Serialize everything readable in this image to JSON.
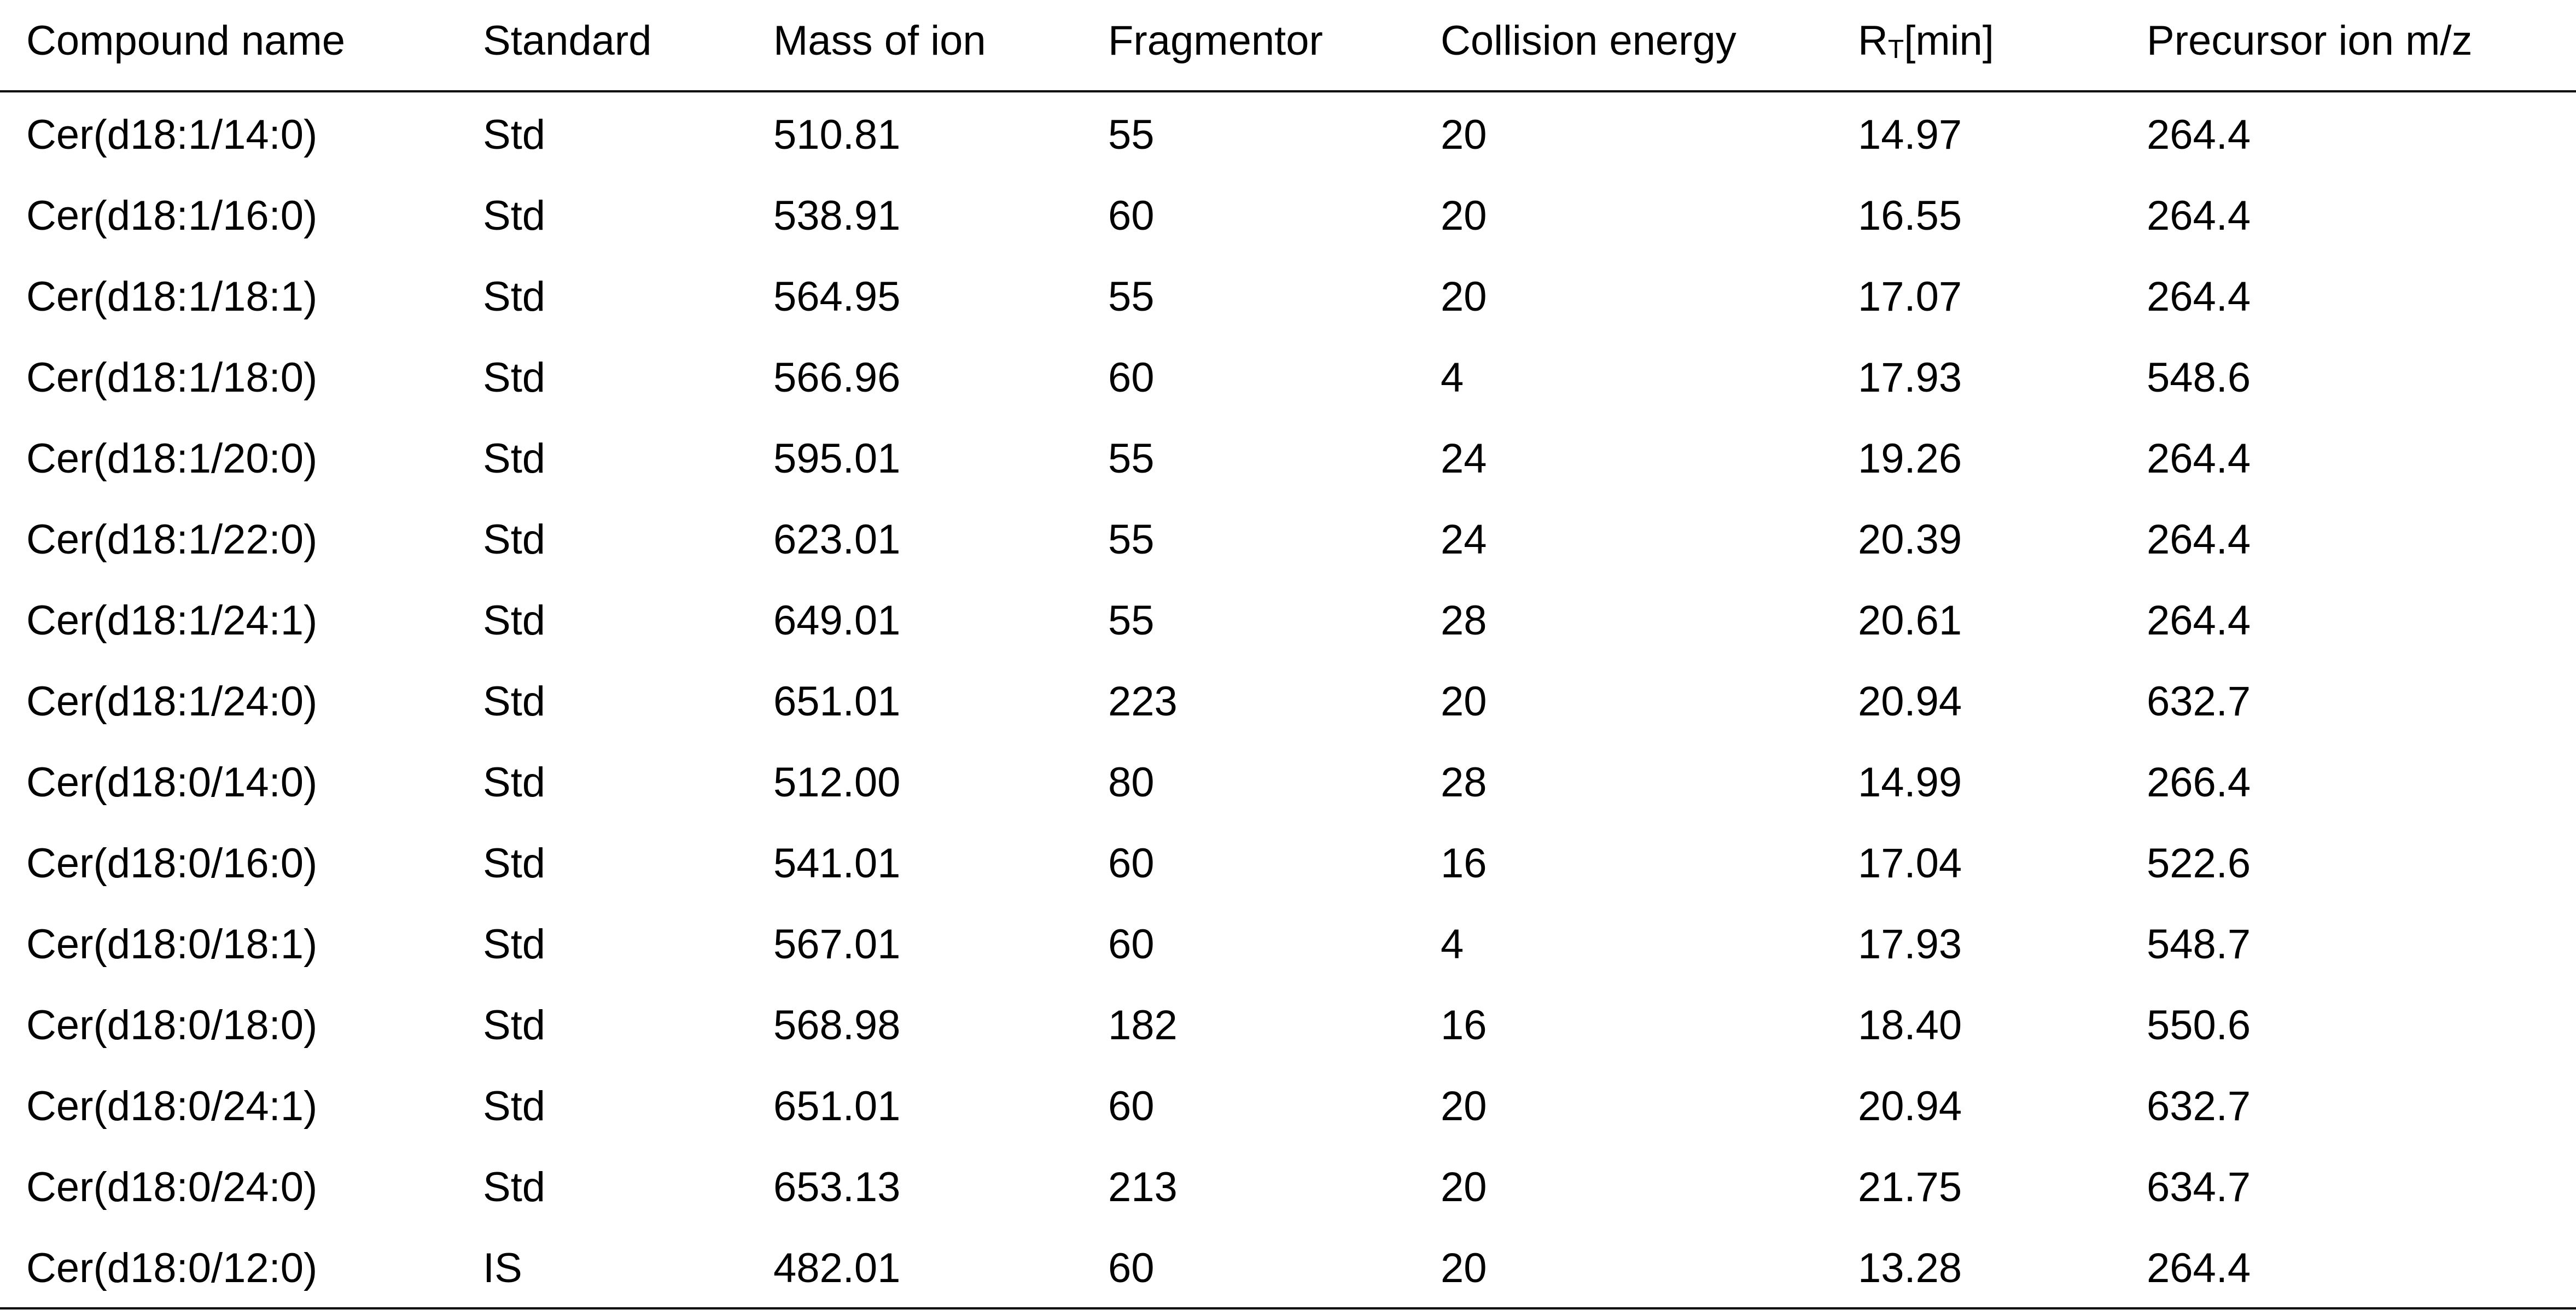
{
  "table": {
    "headers": {
      "compound_name": "Compound name",
      "standard": "Standard",
      "mass_of_ion": "Mass of ion",
      "fragmentor": "Fragmentor",
      "collision_energy": "Collision energy",
      "rt_base": "R",
      "rt_sub": "T",
      "rt_unit": "[min]",
      "precursor_ion": "Precursor ion m/z"
    },
    "rows": [
      [
        "Cer(d18:1/14:0)",
        "Std",
        "510.81",
        "55",
        "20",
        "14.97",
        "264.4"
      ],
      [
        "Cer(d18:1/16:0)",
        "Std",
        "538.91",
        "60",
        "20",
        "16.55",
        "264.4"
      ],
      [
        "Cer(d18:1/18:1)",
        "Std",
        "564.95",
        "55",
        "20",
        "17.07",
        "264.4"
      ],
      [
        "Cer(d18:1/18:0)",
        "Std",
        "566.96",
        "60",
        "4",
        "17.93",
        "548.6"
      ],
      [
        "Cer(d18:1/20:0)",
        "Std",
        "595.01",
        "55",
        "24",
        "19.26",
        "264.4"
      ],
      [
        "Cer(d18:1/22:0)",
        "Std",
        "623.01",
        "55",
        "24",
        "20.39",
        "264.4"
      ],
      [
        "Cer(d18:1/24:1)",
        "Std",
        "649.01",
        "55",
        "28",
        "20.61",
        "264.4"
      ],
      [
        "Cer(d18:1/24:0)",
        "Std",
        "651.01",
        "223",
        "20",
        "20.94",
        "632.7"
      ],
      [
        "Cer(d18:0/14:0)",
        "Std",
        "512.00",
        "80",
        "28",
        "14.99",
        "266.4"
      ],
      [
        "Cer(d18:0/16:0)",
        "Std",
        "541.01",
        "60",
        "16",
        "17.04",
        "522.6"
      ],
      [
        "Cer(d18:0/18:1)",
        "Std",
        "567.01",
        "60",
        "4",
        "17.93",
        "548.7"
      ],
      [
        "Cer(d18:0/18:0)",
        "Std",
        "568.98",
        "182",
        "16",
        "18.40",
        "550.6"
      ],
      [
        "Cer(d18:0/24:1)",
        "Std",
        "651.01",
        "60",
        "20",
        "20.94",
        "632.7"
      ],
      [
        "Cer(d18:0/24:0)",
        "Std",
        "653.13",
        "213",
        "20",
        "21.75",
        "634.7"
      ],
      [
        "Cer(d18:0/12:0)",
        "IS",
        "482.01",
        "60",
        "20",
        "13.28",
        "264.4"
      ]
    ]
  }
}
